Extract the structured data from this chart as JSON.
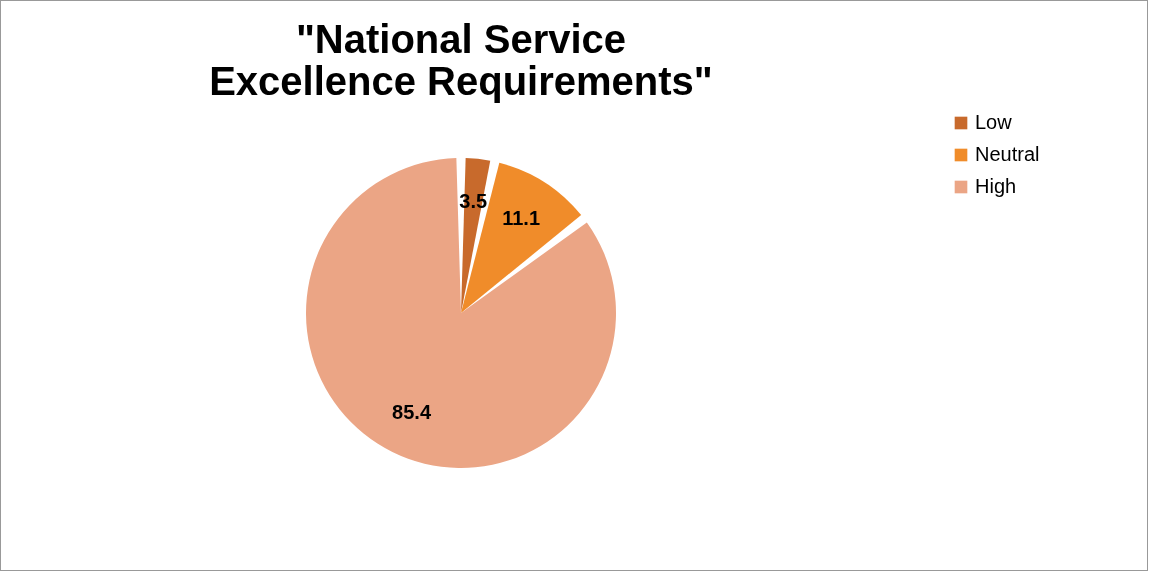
{
  "chart_data": {
    "type": "pie",
    "title": "\"National Service Excellence Requirements\"",
    "categories": [
      "Low",
      "Neutral",
      "High"
    ],
    "values": [
      3.5,
      11.1,
      85.4
    ],
    "colors": [
      "#c86a2c",
      "#f08c2a",
      "#eba585"
    ],
    "data_labels": true,
    "legend": "right"
  }
}
